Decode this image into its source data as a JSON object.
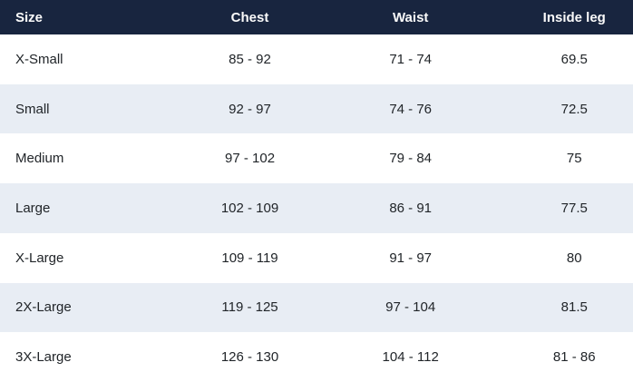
{
  "chart_data": {
    "type": "table",
    "columns": [
      {
        "label": "Size",
        "align": "left"
      },
      {
        "label": "Chest",
        "align": "center"
      },
      {
        "label": "Waist",
        "align": "center"
      },
      {
        "label": "Inside leg",
        "align": "center"
      }
    ],
    "rows": [
      {
        "size": "X-Small",
        "chest": "85 - 92",
        "waist": "71 - 74",
        "inside_leg": "69.5"
      },
      {
        "size": "Small",
        "chest": "92 - 97",
        "waist": "74 - 76",
        "inside_leg": "72.5"
      },
      {
        "size": "Medium",
        "chest": "97 - 102",
        "waist": "79 - 84",
        "inside_leg": "75"
      },
      {
        "size": "Large",
        "chest": "102 - 109",
        "waist": "86 - 91",
        "inside_leg": "77.5"
      },
      {
        "size": "X-Large",
        "chest": "109 - 119",
        "waist": "91 - 97",
        "inside_leg": "80"
      },
      {
        "size": "2X-Large",
        "chest": "119 - 125",
        "waist": "97 - 104",
        "inside_leg": "81.5"
      },
      {
        "size": "3X-Large",
        "chest": "126 - 130",
        "waist": "104 - 112",
        "inside_leg": "81 - 86"
      }
    ],
    "layout": {
      "header_row": true,
      "zebra_striping": true,
      "first_stripe": "white"
    },
    "colors": {
      "header_bg": "#18253F",
      "header_text": "#FAFAFA",
      "row_bg": "#FFFFFF",
      "row_alt_bg": "#E8EDF4",
      "row_text": "#212529"
    }
  }
}
